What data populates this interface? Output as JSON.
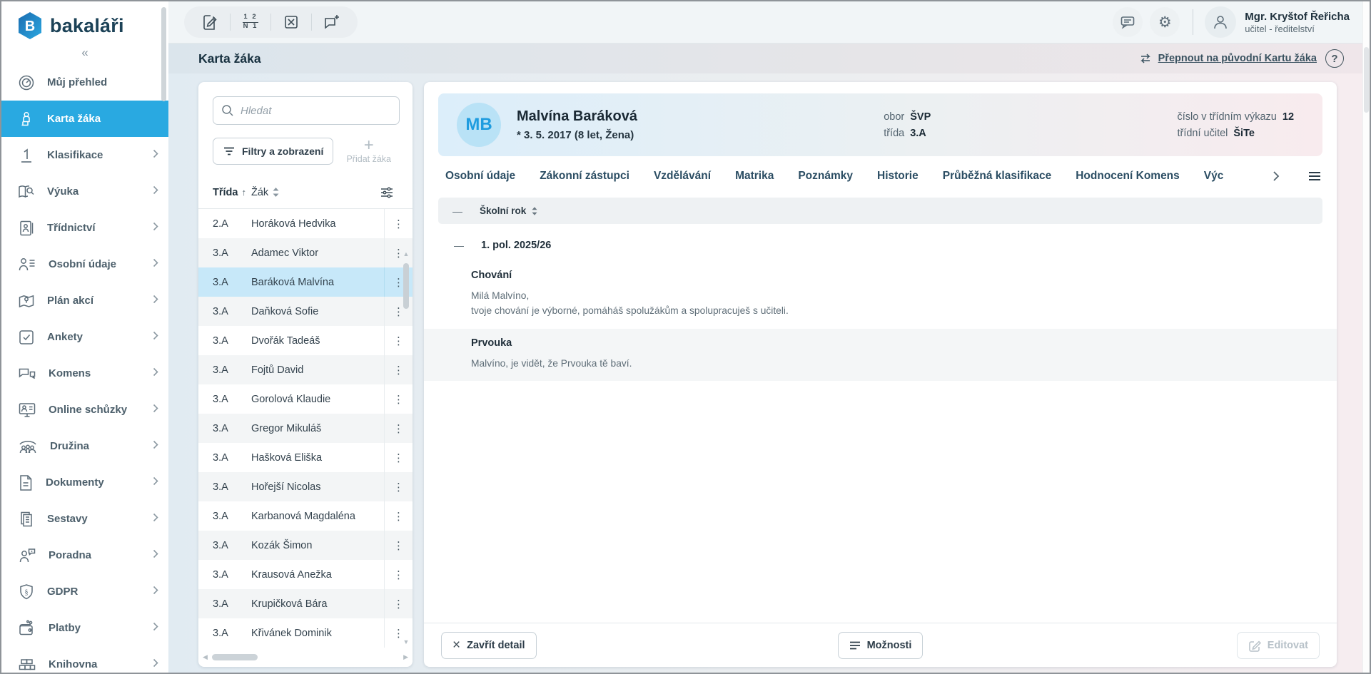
{
  "app": {
    "brand": "bakaláři"
  },
  "icons": {
    "collapse": "«",
    "kebab": "⋮",
    "sort_asc": "↑",
    "gear": "⚙",
    "help": "?",
    "close": "×",
    "plus": "+",
    "minus": "—",
    "v_arrow_up": "▲",
    "v_arrow_down": "▼",
    "h_arrow_left": "◀",
    "h_arrow_right": "▶"
  },
  "sidebar": {
    "items": [
      {
        "id": "muj-prehled",
        "icon": "gauge",
        "label": "Můj přehled",
        "chevron": false,
        "active": false
      },
      {
        "id": "karta-zaka",
        "icon": "student-desk",
        "label": "Karta žáka",
        "chevron": false,
        "active": true
      },
      {
        "id": "klasifikace",
        "icon": "grade-one",
        "label": "Klasifikace",
        "chevron": true,
        "active": false
      },
      {
        "id": "vyuka",
        "icon": "book-search",
        "label": "Výuka",
        "chevron": true,
        "active": false
      },
      {
        "id": "tridnictvi",
        "icon": "notebook-person",
        "label": "Třídnictví",
        "chevron": true,
        "active": false
      },
      {
        "id": "osobni-udaje",
        "icon": "person-list",
        "label": "Osobní údaje",
        "chevron": true,
        "active": false
      },
      {
        "id": "plan-akci",
        "icon": "map-pin",
        "label": "Plán akcí",
        "chevron": true,
        "active": false
      },
      {
        "id": "ankety",
        "icon": "checkbox",
        "label": "Ankety",
        "chevron": true,
        "active": false
      },
      {
        "id": "komens",
        "icon": "chat-bubbles",
        "label": "Komens",
        "chevron": true,
        "active": false
      },
      {
        "id": "online-schuzky",
        "icon": "monitor-person",
        "label": "Online schůzky",
        "chevron": true,
        "active": false
      },
      {
        "id": "druzina",
        "icon": "people-group",
        "label": "Družina",
        "chevron": true,
        "active": false
      },
      {
        "id": "dokumenty",
        "icon": "document",
        "label": "Dokumenty",
        "chevron": true,
        "active": false
      },
      {
        "id": "sestavy",
        "icon": "documents-stack",
        "label": "Sestavy",
        "chevron": true,
        "active": false
      },
      {
        "id": "poradna",
        "icon": "person-chat",
        "label": "Poradna",
        "chevron": true,
        "active": false
      },
      {
        "id": "gdpr",
        "icon": "shield-paragraph",
        "label": "GDPR",
        "chevron": true,
        "active": false
      },
      {
        "id": "platby",
        "icon": "wallet",
        "label": "Platby",
        "chevron": true,
        "active": false
      },
      {
        "id": "knihovna",
        "icon": "books",
        "label": "Knihovna",
        "chevron": true,
        "active": false
      }
    ]
  },
  "topbar": {
    "grades_icon_top": "1 2",
    "grades_icon_bottom": "N 1",
    "user": {
      "name": "Mgr. Kryštof Řeřicha",
      "role": "učitel - ředitelství"
    }
  },
  "page": {
    "title": "Karta žáka",
    "switch_link": "Přepnout na původní Kartu žáka"
  },
  "list_panel": {
    "search_placeholder": "Hledat",
    "filters_label": "Filtry a zobrazení",
    "add_label": "Přidat žáka",
    "columns": {
      "class": "Třída",
      "student": "Žák"
    },
    "students": [
      {
        "cls": "2.A",
        "name": "Horáková Hedvika",
        "selected": false
      },
      {
        "cls": "3.A",
        "name": "Adamec Viktor",
        "selected": false
      },
      {
        "cls": "3.A",
        "name": "Baráková Malvína",
        "selected": true
      },
      {
        "cls": "3.A",
        "name": "Daňková Sofie",
        "selected": false
      },
      {
        "cls": "3.A",
        "name": "Dvořák Tadeáš",
        "selected": false
      },
      {
        "cls": "3.A",
        "name": "Fojtů David",
        "selected": false
      },
      {
        "cls": "3.A",
        "name": "Gorolová Klaudie",
        "selected": false
      },
      {
        "cls": "3.A",
        "name": "Gregor Mikuláš",
        "selected": false
      },
      {
        "cls": "3.A",
        "name": "Hašková Eliška",
        "selected": false
      },
      {
        "cls": "3.A",
        "name": "Hořejší Nicolas",
        "selected": false
      },
      {
        "cls": "3.A",
        "name": "Karbanová Magdaléna",
        "selected": false
      },
      {
        "cls": "3.A",
        "name": "Kozák Šimon",
        "selected": false
      },
      {
        "cls": "3.A",
        "name": "Krausová Anežka",
        "selected": false
      },
      {
        "cls": "3.A",
        "name": "Krupičková Bára",
        "selected": false
      },
      {
        "cls": "3.A",
        "name": "Křivánek Dominik",
        "selected": false
      }
    ]
  },
  "detail": {
    "student": {
      "initials": "MB",
      "name": "Malvína Baráková",
      "birth": "* 3. 5. 2017  (8 let, Žena)",
      "info_left": [
        {
          "label": "obor",
          "value": "ŠVP"
        },
        {
          "label": "třída",
          "value": "3.A"
        }
      ],
      "info_right": [
        {
          "label": "číslo v třídním výkazu",
          "value": "12"
        },
        {
          "label": "třídní učitel",
          "value": "ŠiTe"
        }
      ]
    },
    "tabs": [
      {
        "id": "osobni-udaje",
        "label": "Osobní údaje"
      },
      {
        "id": "zakonni-zastupci",
        "label": "Zákonní zástupci"
      },
      {
        "id": "vzdelavani",
        "label": "Vzdělávání"
      },
      {
        "id": "matrika",
        "label": "Matrika"
      },
      {
        "id": "poznamky",
        "label": "Poznámky"
      },
      {
        "id": "historie",
        "label": "Historie"
      },
      {
        "id": "prubezna-klasifikace",
        "label": "Průběžná klasifikace"
      },
      {
        "id": "hodnoceni-komens",
        "label": "Hodnocení Komens"
      },
      {
        "id": "vychovna-opatreni",
        "label": "Výchovná opatřen",
        "truncated": true
      }
    ],
    "content": {
      "group_header": "Školní rok",
      "period": "1. pol. 2025/26",
      "entries": [
        {
          "subject": "Chování",
          "lines": [
            "Milá Malvíno,",
            "tvoje chování je výborné, pomáháš spolužákům a spolupracuješ s učiteli."
          ],
          "shaded": false
        },
        {
          "subject": "Prvouka",
          "lines": [
            "Malvíno, je vidět, že Prvouka tě baví."
          ],
          "shaded": true
        }
      ]
    },
    "footer": {
      "close_label": "Zavřít detail",
      "options_label": "Možnosti",
      "edit_label": "Editovat"
    }
  }
}
